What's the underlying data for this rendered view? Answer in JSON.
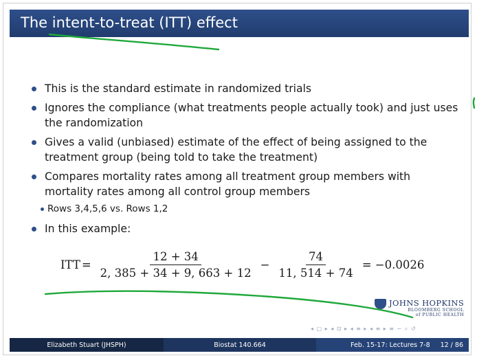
{
  "slide": {
    "title": "The intent-to-treat (ITT) effect",
    "bullets": [
      "This is the standard estimate in randomized trials",
      "Ignores the compliance (what treatments people actually took) and just uses the randomization",
      "Gives a valid (unbiased) estimate of the effect of being assigned to the treatment group (being told to take the treatment)",
      "Compares mortality rates among all treatment group members with mortality rates among all control group members",
      "In this example:"
    ],
    "sub_bullet": "Rows 3,4,5,6 vs. Rows 1,2",
    "formula": {
      "lhs": "ITT",
      "eq": "=",
      "num1": "12 + 34",
      "den1": "2, 385 + 34 + 9, 663 + 12",
      "minus": "−",
      "num2": "74",
      "den2": "11, 514 + 74",
      "result": "= −0.0026"
    }
  },
  "logo": {
    "main": "JOHNS HOPKINS",
    "line1": "BLOOMBERG SCHOOL",
    "line2": "of PUBLIC HEALTH"
  },
  "nav_symbols": "◂ □ ▸ ◂ ⊡ ▸ ◂ ≡ ▸ ◂ ≡ ▸   ≡   ∽ ⌕ ↺",
  "footer": {
    "author": "Elizabeth Stuart  (JHSPH)",
    "course": "Biostat 140.664",
    "date": "Feb. 15-17: Lectures 7-8",
    "page": "12 / 86"
  },
  "colors": {
    "title_bar": "#2e4f8a",
    "annotation_pen": "#1fa83a"
  }
}
